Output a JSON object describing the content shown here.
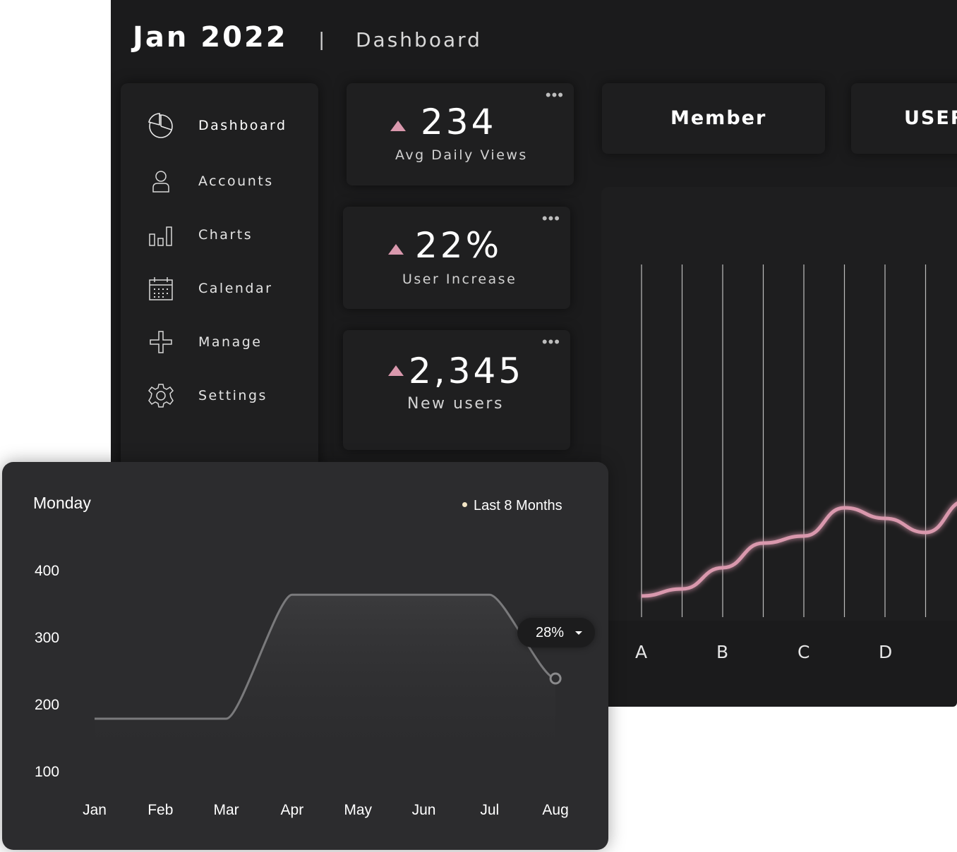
{
  "header": {
    "title": "Jan 2022",
    "separator": "|",
    "page": "Dashboard"
  },
  "sidebar": {
    "items": [
      {
        "label": "Dashboard",
        "icon": "pie-chart-icon",
        "active": true
      },
      {
        "label": "Accounts",
        "icon": "user-icon"
      },
      {
        "label": "Charts",
        "icon": "bar-chart-icon"
      },
      {
        "label": "Calendar",
        "icon": "calendar-icon"
      },
      {
        "label": "Manage",
        "icon": "plus-icon"
      },
      {
        "label": "Settings",
        "icon": "gear-icon"
      }
    ]
  },
  "stats": [
    {
      "value": "234",
      "label": "Avg Daily Views"
    },
    {
      "value": "22%",
      "label": "User Increase"
    },
    {
      "value": "2,345",
      "label": "New users"
    }
  ],
  "tabs": [
    {
      "label": "Member"
    },
    {
      "label": "USER"
    }
  ],
  "colors": {
    "accent": "#d998ad",
    "background": "#1b1b1c",
    "card": "#2c2c2e"
  },
  "chart_data": [
    {
      "type": "line",
      "title": "",
      "categories": [
        "A",
        "B",
        "C",
        "D"
      ],
      "ylim": [
        0,
        100
      ],
      "grid": true,
      "series": [
        {
          "x": [
            0,
            0.5,
            1,
            1.5,
            2,
            2.5,
            3,
            3.5,
            4,
            4.5,
            4.8
          ],
          "values": [
            6,
            8,
            14,
            21,
            23,
            31,
            28,
            24,
            33,
            56,
            60
          ]
        }
      ]
    },
    {
      "type": "line",
      "title": "Monday",
      "legend": "Last 8 Months",
      "categories": [
        "Jan",
        "Feb",
        "Mar",
        "Apr",
        "May",
        "Jun",
        "Jul",
        "Aug"
      ],
      "yticks": [
        400,
        300,
        200,
        100
      ],
      "ylim": [
        100,
        400
      ],
      "series": [
        {
          "values": [
            180,
            180,
            180,
            365,
            365,
            365,
            365,
            240
          ]
        }
      ],
      "annotation": {
        "category": "Aug",
        "label": "28%"
      }
    }
  ]
}
